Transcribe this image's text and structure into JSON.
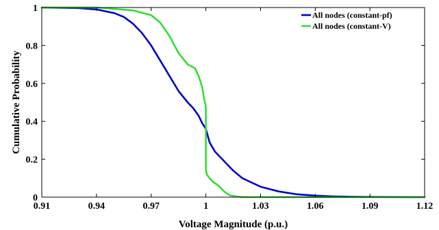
{
  "chart_data": {
    "type": "line",
    "title": "",
    "xlabel": "Voltage Magnitude (p.u.)",
    "ylabel": "Cumulative Probability",
    "xlim": [
      0.91,
      1.12
    ],
    "ylim": [
      0,
      1
    ],
    "xticks": [
      "0.91",
      "0.94",
      "0.97",
      "1",
      "1.03",
      "1.06",
      "1.09",
      "1.12"
    ],
    "yticks": [
      "0",
      "0.2",
      "0.4",
      "0.6",
      "0.8",
      "1"
    ],
    "grid": false,
    "legend_position": "top-right",
    "series": [
      {
        "name": "All nodes (constant-pf)",
        "color": "#0000cc",
        "x": [
          0.91,
          0.93,
          0.94,
          0.95,
          0.955,
          0.96,
          0.965,
          0.97,
          0.975,
          0.98,
          0.985,
          0.99,
          0.993,
          0.996,
          0.998,
          1.0,
          1.002,
          1.005,
          1.01,
          1.015,
          1.02,
          1.03,
          1.04,
          1.05,
          1.06,
          1.07,
          1.08,
          1.09,
          1.12
        ],
        "y": [
          1.0,
          0.997,
          0.99,
          0.97,
          0.95,
          0.915,
          0.865,
          0.8,
          0.72,
          0.64,
          0.56,
          0.5,
          0.47,
          0.43,
          0.39,
          0.36,
          0.29,
          0.24,
          0.19,
          0.14,
          0.1,
          0.055,
          0.03,
          0.015,
          0.008,
          0.004,
          0.002,
          0.001,
          0.0
        ]
      },
      {
        "name": "All nodes (constant-V)",
        "color": "#33dd33",
        "x": [
          0.91,
          0.94,
          0.96,
          0.97,
          0.975,
          0.98,
          0.985,
          0.99,
          0.994,
          0.996,
          0.998,
          0.999,
          0.9995,
          1.0,
          1.0,
          1.0005,
          1.002,
          1.004,
          1.007,
          1.01,
          1.013,
          1.016,
          1.02,
          1.03,
          1.12
        ],
        "y": [
          1.0,
          1.0,
          0.985,
          0.96,
          0.92,
          0.85,
          0.76,
          0.7,
          0.68,
          0.64,
          0.58,
          0.52,
          0.5,
          0.48,
          0.15,
          0.12,
          0.1,
          0.08,
          0.06,
          0.03,
          0.01,
          0.005,
          0.0,
          0.0,
          0.0
        ]
      }
    ]
  }
}
